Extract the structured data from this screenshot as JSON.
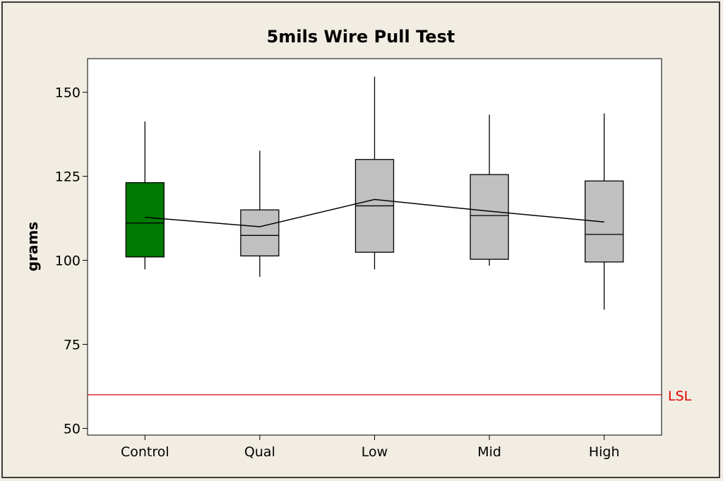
{
  "chart_data": {
    "type": "box",
    "title": "5mils Wire Pull Test",
    "xlabel": "",
    "ylabel": "grams",
    "ylim": [
      48,
      160
    ],
    "yticks": [
      50,
      75,
      100,
      125,
      150
    ],
    "categories": [
      "Control",
      "Qual",
      "Low",
      "Mid",
      "High"
    ],
    "boxes": [
      {
        "category": "Control",
        "whisker_low": 97.3,
        "q1": 101.0,
        "median": 111.1,
        "q3": 123.1,
        "whisker_high": 141.3,
        "mean": 112.8,
        "fill": "#007a00"
      },
      {
        "category": "Qual",
        "whisker_low": 95.1,
        "q1": 101.3,
        "median": 107.4,
        "q3": 115.0,
        "whisker_high": 132.6,
        "mean": 110.0,
        "fill": "#c0c0c0"
      },
      {
        "category": "Low",
        "whisker_low": 97.3,
        "q1": 102.4,
        "median": 116.2,
        "q3": 130.0,
        "whisker_high": 154.6,
        "mean": 118.1,
        "fill": "#c0c0c0"
      },
      {
        "category": "Mid",
        "whisker_low": 98.4,
        "q1": 100.3,
        "median": 113.3,
        "q3": 125.5,
        "whisker_high": 143.3,
        "mean": 114.6,
        "fill": "#c0c0c0"
      },
      {
        "category": "High",
        "whisker_low": 85.3,
        "q1": 99.5,
        "median": 107.7,
        "q3": 123.6,
        "whisker_high": 143.7,
        "mean": 111.4,
        "fill": "#c0c0c0"
      }
    ],
    "reference_lines": [
      {
        "label": "LSL",
        "value": 60,
        "color": "#e00000"
      }
    ],
    "mean_connect_line": true,
    "grid": false
  }
}
